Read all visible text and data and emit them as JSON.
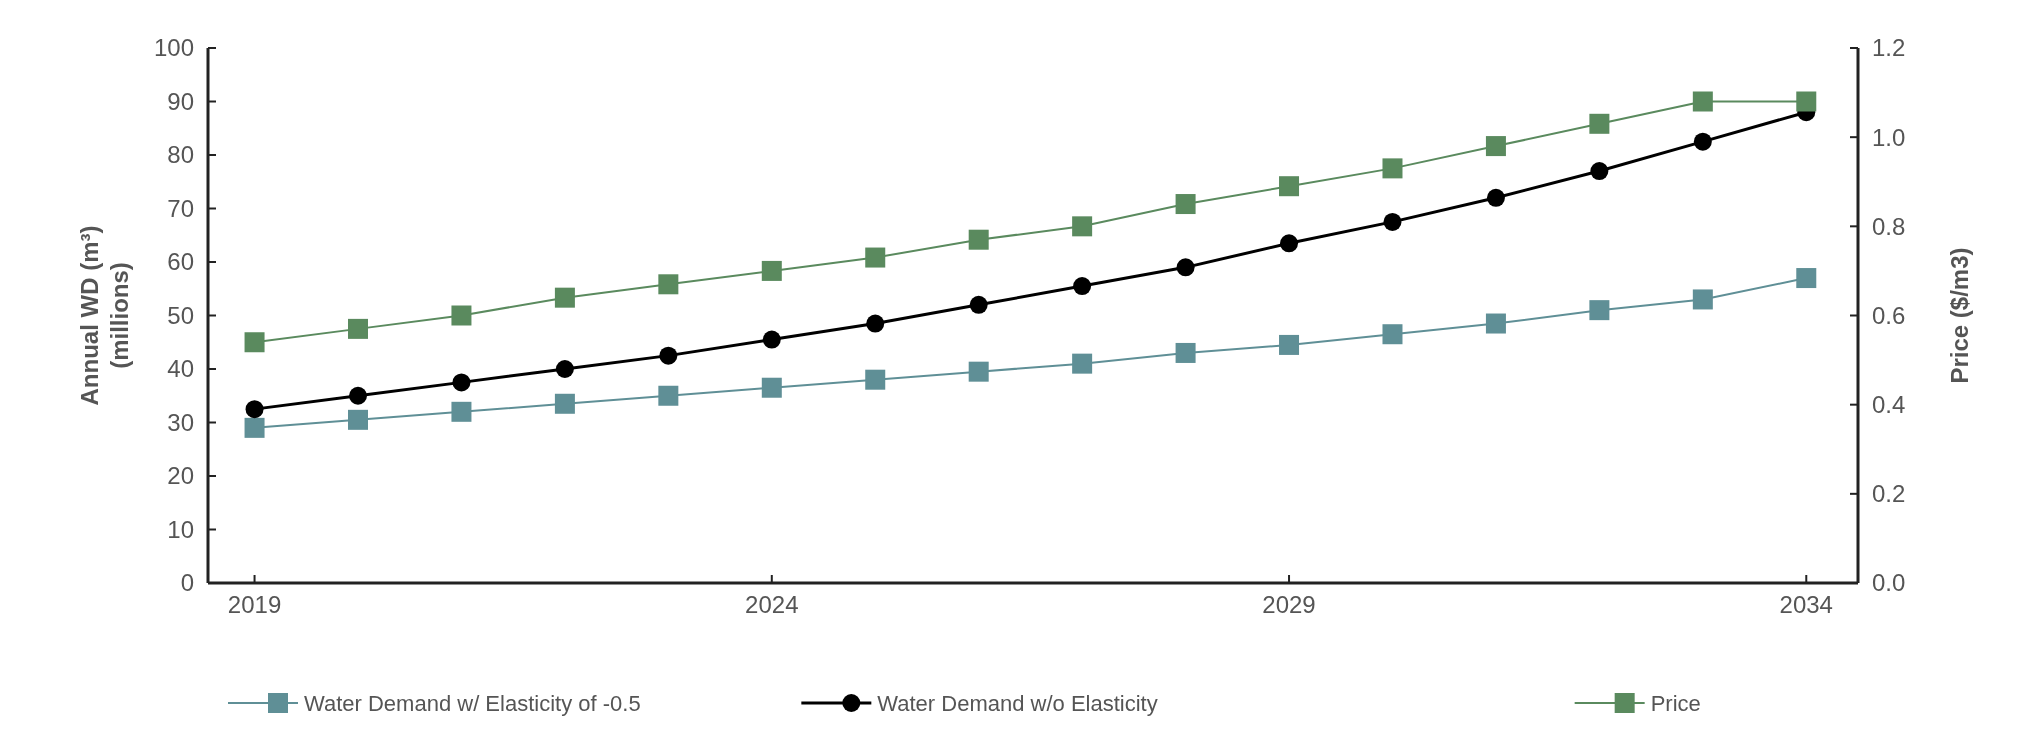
{
  "chart_data": {
    "type": "line",
    "xlabel": null,
    "ylabel": "Annual WD (m³)\n(millions)",
    "y2label": "Price ($/m3)",
    "x": [
      2019,
      2020,
      2021,
      2022,
      2023,
      2024,
      2025,
      2026,
      2027,
      2028,
      2029,
      2030,
      2031,
      2032,
      2033,
      2034
    ],
    "xlim": [
      2018.55,
      2034.5
    ],
    "xticks": [
      2019,
      2024,
      2029,
      2034
    ],
    "ylim": [
      0,
      100
    ],
    "yticks": [
      0,
      10,
      20,
      30,
      40,
      50,
      60,
      70,
      80,
      90,
      100
    ],
    "y2lim": [
      0,
      1.2
    ],
    "y2ticks": [
      {
        "value": 0,
        "label": "0.0"
      },
      {
        "value": 0.2,
        "label": "0.2"
      },
      {
        "value": 0.4,
        "label": "0.4"
      },
      {
        "value": 0.6,
        "label": "0.6"
      },
      {
        "value": 0.8,
        "label": "0.8"
      },
      {
        "value": 1,
        "label": "1.0"
      },
      {
        "value": 1.2,
        "label": "1.2"
      }
    ],
    "series": [
      {
        "name": "Water Demand w/ Elasticity of -0.5",
        "color": "#5f8f96",
        "marker": "square",
        "values": [
          29,
          30.5,
          32,
          33.5,
          35,
          36.5,
          38,
          39.5,
          41,
          43,
          44.5,
          46.5,
          48.5,
          51,
          53,
          57
        ]
      },
      {
        "name": "Water Demand w/o Elasticity",
        "color": "#000000",
        "marker": "circle",
        "values": [
          32.5,
          35,
          37.5,
          40,
          42.5,
          45.5,
          48.5,
          52,
          55.5,
          59,
          63.5,
          67.5,
          72,
          77,
          82.5,
          88
        ]
      },
      {
        "name": "Price",
        "color": "#5a8a5e",
        "marker": "square",
        "axis": "y2",
        "values": [
          0.54,
          0.57,
          0.6,
          0.64,
          0.67,
          0.7,
          0.73,
          0.77,
          0.8,
          0.85,
          0.89,
          0.93,
          0.98,
          1.03,
          1.08,
          1.08
        ]
      }
    ],
    "legend": "bottom",
    "grid": false
  }
}
